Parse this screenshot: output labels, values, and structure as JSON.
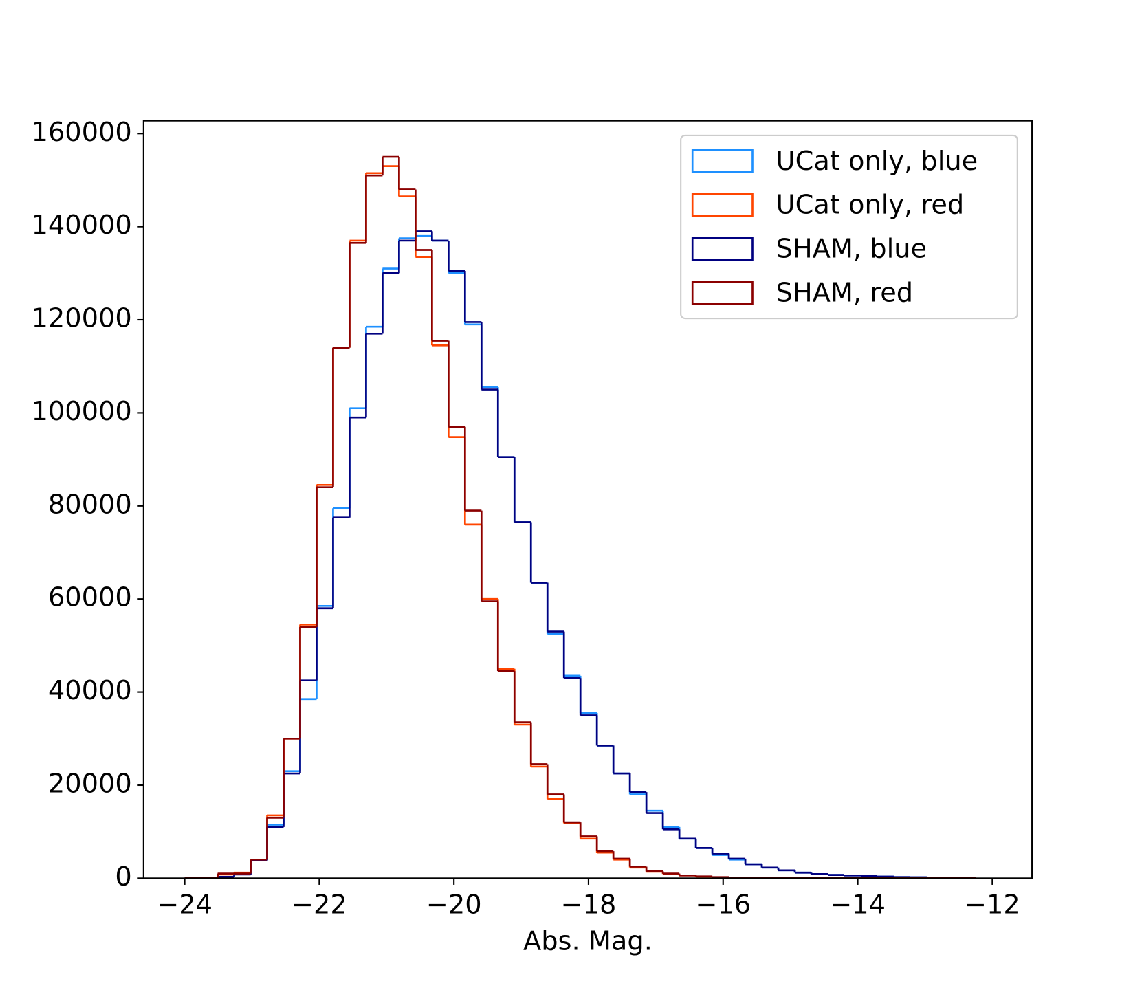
{
  "chart_data": {
    "type": "histogram",
    "xlabel": "Abs. Mag.",
    "bins": [
      -24,
      -23.755,
      -23.51,
      -23.265,
      -23.02,
      -22.775,
      -22.53,
      -22.285,
      -22.04,
      -21.795,
      -21.55,
      -21.305,
      -21.06,
      -20.815,
      -20.57,
      -20.325,
      -20.08,
      -19.835,
      -19.59,
      -19.345,
      -19.1,
      -18.855,
      -18.61,
      -18.365,
      -18.12,
      -17.875,
      -17.63,
      -17.385,
      -17.14,
      -16.895,
      -16.65,
      -16.405,
      -16.16,
      -15.915,
      -15.67,
      -15.425,
      -15.18,
      -14.935,
      -14.69,
      -14.445,
      -14.2,
      -13.955,
      -13.71,
      -13.465,
      -13.22,
      -12.975,
      -12.73,
      -12.485,
      -12.24
    ],
    "series": [
      {
        "name": "UCat only, blue",
        "color": "#1e90ff",
        "values": [
          0,
          50,
          300,
          900,
          4000,
          11500,
          23000,
          38500,
          58500,
          79500,
          101000,
          118500,
          131000,
          137500,
          138000,
          137000,
          130000,
          119000,
          105500,
          90500,
          76500,
          63500,
          52500,
          43500,
          35500,
          28500,
          22500,
          18000,
          14500,
          11000,
          8500,
          6500,
          5000,
          4000,
          3000,
          2300,
          1700,
          1200,
          900,
          700,
          600,
          500,
          350,
          250,
          200,
          150,
          100,
          80
        ]
      },
      {
        "name": "UCat only, red",
        "color": "#ff4500",
        "values": [
          0,
          100,
          800,
          1200,
          4000,
          13500,
          30000,
          54500,
          84500,
          114000,
          137000,
          151500,
          153000,
          146500,
          133500,
          114500,
          94800,
          76000,
          60000,
          45000,
          33000,
          24000,
          17000,
          11800,
          8500,
          5500,
          4000,
          2300,
          1400,
          900,
          600,
          350,
          200,
          120,
          80,
          40,
          20,
          10,
          5,
          0,
          0,
          0,
          0,
          0,
          0,
          0,
          0,
          0
        ]
      },
      {
        "name": "SHAM, blue",
        "color": "#000080",
        "values": [
          0,
          50,
          300,
          800,
          3800,
          11000,
          22500,
          42500,
          58000,
          77500,
          99000,
          117000,
          130000,
          137000,
          139000,
          137000,
          130500,
          119500,
          105000,
          90500,
          76500,
          63500,
          53000,
          43000,
          35000,
          28500,
          22500,
          18500,
          14000,
          10500,
          8500,
          6500,
          5300,
          4200,
          3000,
          2300,
          1700,
          1200,
          900,
          700,
          600,
          500,
          350,
          250,
          200,
          150,
          100,
          80
        ]
      },
      {
        "name": "SHAM, red",
        "color": "#8b0000",
        "values": [
          0,
          100,
          1000,
          1000,
          4000,
          13000,
          30000,
          54000,
          84000,
          114000,
          136500,
          151000,
          155000,
          148000,
          135000,
          115500,
          97000,
          79000,
          59500,
          44500,
          33500,
          24500,
          18000,
          12000,
          9000,
          5800,
          4200,
          2500,
          1500,
          1000,
          600,
          400,
          250,
          150,
          100,
          50,
          20,
          10,
          5,
          0,
          0,
          0,
          0,
          0,
          0,
          0,
          0,
          0
        ]
      }
    ],
    "xlim": [
      -24.61,
      -11.41
    ],
    "ylim": [
      0,
      162750
    ],
    "xticks": [
      {
        "value": -24,
        "label": "−24"
      },
      {
        "value": -22,
        "label": "−22"
      },
      {
        "value": -20,
        "label": "−20"
      },
      {
        "value": -18,
        "label": "−18"
      },
      {
        "value": -16,
        "label": "−16"
      },
      {
        "value": -14,
        "label": "−14"
      },
      {
        "value": -12,
        "label": "−12"
      }
    ],
    "yticks": [
      0,
      20000,
      40000,
      60000,
      80000,
      100000,
      120000,
      140000,
      160000
    ],
    "legend": "upper right"
  }
}
